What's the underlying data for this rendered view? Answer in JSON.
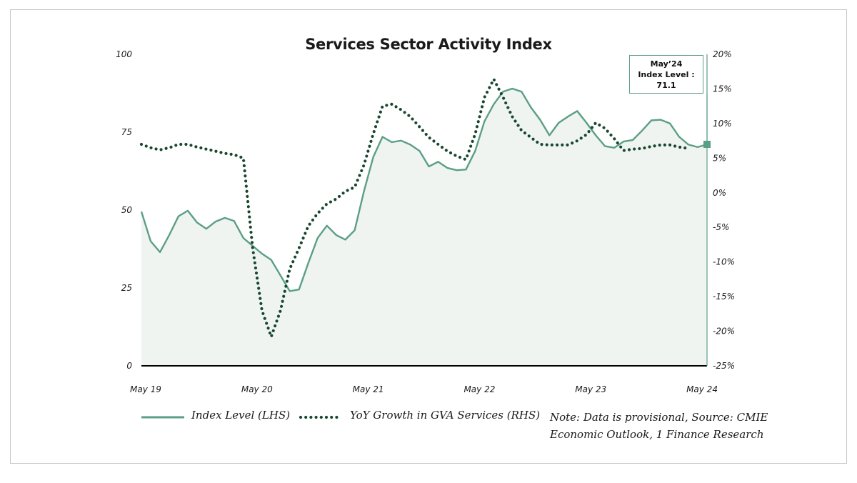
{
  "chart_data": {
    "type": "line",
    "title": "Services Sector Activity Index",
    "x_tick_labels": [
      "May 19",
      "May 20",
      "May 21",
      "May 22",
      "May 23",
      "May 24"
    ],
    "left_axis": {
      "ylim": [
        0,
        100
      ],
      "ticks": [
        "100",
        "75",
        "50",
        "25",
        "0"
      ],
      "tick_values": [
        100,
        75,
        50,
        25,
        0
      ]
    },
    "right_axis": {
      "ylim": [
        -25,
        20
      ],
      "ticks": [
        "20%",
        "15%",
        "10%",
        "5%",
        "0%",
        "-5%",
        "-10%",
        "-15%",
        "-20%",
        "-25%"
      ],
      "tick_values": [
        20,
        15,
        10,
        5,
        0,
        -5,
        -10,
        -15,
        -20,
        -25
      ]
    },
    "series": [
      {
        "name": "Index Level (LHS)",
        "axis": "left",
        "style": "solid-area",
        "color": "#5b9e86",
        "fill": "#eff4f1",
        "values": [
          49.5,
          40,
          36.5,
          42,
          48,
          49.8,
          46,
          44,
          46.3,
          47.5,
          46.5,
          41,
          38.5,
          36,
          34,
          29,
          24,
          24.5,
          33,
          41,
          45,
          42,
          40.5,
          43.5,
          56,
          67,
          73.5,
          71.8,
          72.3,
          71,
          69,
          64,
          65.5,
          63.5,
          62.8,
          63,
          69,
          78.5,
          84,
          88,
          89,
          88,
          83,
          79,
          74,
          78,
          80,
          81.8,
          78,
          74,
          70.5,
          70,
          72,
          72.5,
          75.5,
          78.8,
          79,
          77.8,
          73.5,
          71,
          70.2,
          71.1
        ]
      },
      {
        "name": "YoY Growth in GVA Services (RHS)",
        "axis": "right",
        "style": "dotted",
        "color": "#17472e",
        "values": [
          7,
          6.5,
          6.2,
          6.5,
          7,
          7,
          6.6,
          6.3,
          6,
          5.7,
          5.5,
          5,
          -8,
          -17,
          -20.8,
          -17,
          -11,
          -8,
          -4.8,
          -3,
          -1.6,
          -0.9,
          0.2,
          0.8,
          4,
          8.5,
          12.5,
          12.8,
          12,
          11,
          9.5,
          8,
          7,
          6,
          5.3,
          4.8,
          8.5,
          13.8,
          16.4,
          13.8,
          11,
          9,
          8,
          7,
          6.9,
          6.9,
          6.9,
          7.5,
          8.4,
          10.1,
          9.3,
          7.8,
          6.1,
          6.3,
          6.4,
          6.7,
          6.9,
          6.9,
          6.6,
          6.4
        ]
      }
    ],
    "annotation": {
      "lines": [
        "May’24",
        "Index Level :",
        "71.1"
      ]
    },
    "grid": false
  },
  "legend": {
    "index_label": "Index Level (LHS)",
    "growth_label": "YoY Growth in GVA Services (RHS)"
  },
  "note": "Note: Data is provisional, Source: CMIE Economic Outlook, 1 Finance Research",
  "colors": {
    "index_line": "#5b9e86",
    "growth_line": "#17472e",
    "area_fill": "#eff4f1"
  }
}
